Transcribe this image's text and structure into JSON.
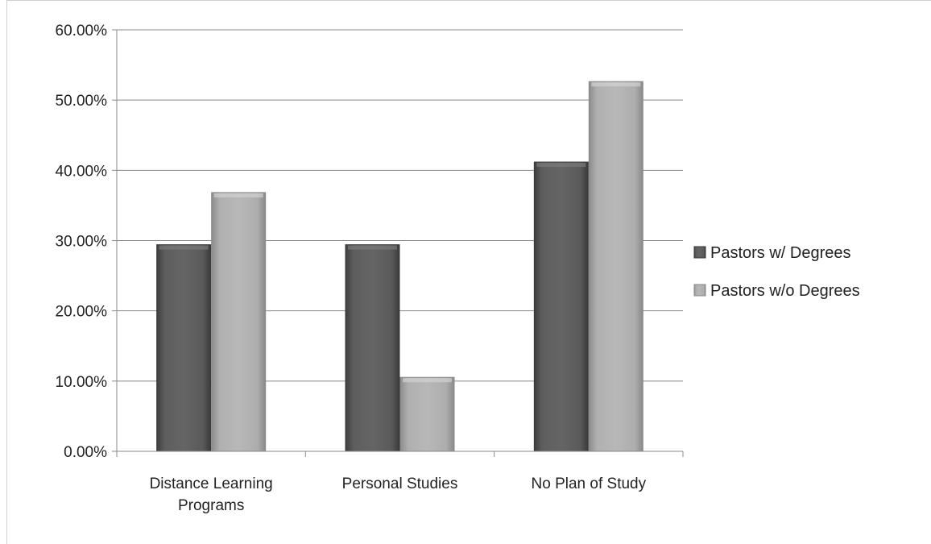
{
  "chart_data": {
    "type": "bar",
    "title": "",
    "xlabel": "",
    "ylabel": "",
    "categories": [
      "Distance Learning Programs",
      "Personal Studies",
      "No Plan of Study"
    ],
    "category_lines": [
      [
        "Distance Learning",
        "Programs"
      ],
      [
        "Personal Studies"
      ],
      [
        "No Plan of Study"
      ]
    ],
    "series": [
      {
        "name": "Pastors w/ Degrees",
        "values": [
          29.41,
          29.41,
          41.18
        ],
        "color": "#5a5a5a"
      },
      {
        "name": "Pastors w/o Degrees",
        "values": [
          36.84,
          10.53,
          52.63
        ],
        "color": "#a9a9a9"
      }
    ],
    "ylim": [
      0,
      60
    ],
    "yticks": [
      0,
      10,
      20,
      30,
      40,
      50,
      60
    ],
    "ytick_labels": [
      "0.00%",
      "10.00%",
      "20.00%",
      "30.00%",
      "40.00%",
      "50.00%",
      "60.00%"
    ],
    "grid": true,
    "legend_position": "right"
  }
}
